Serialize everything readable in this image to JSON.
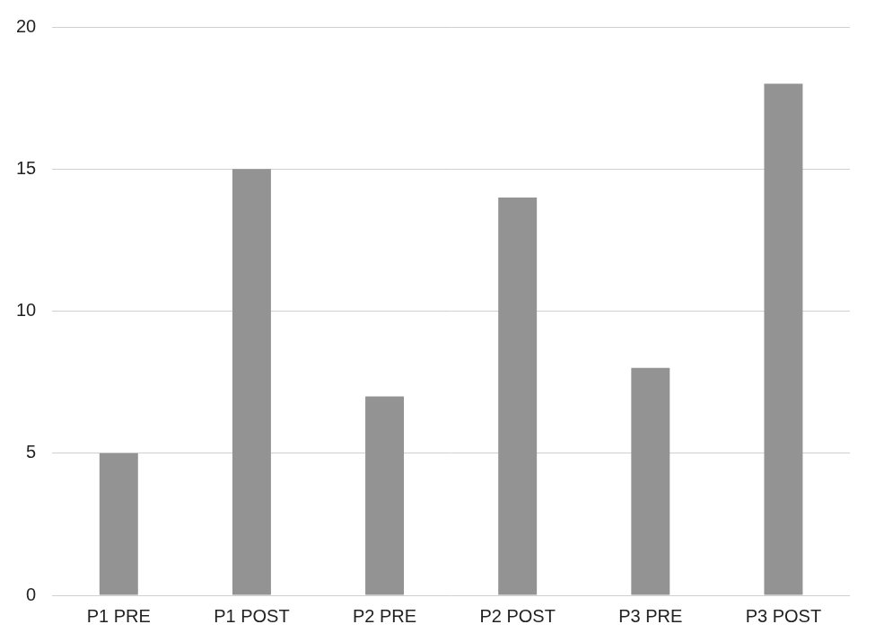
{
  "chart_data": {
    "type": "bar",
    "categories": [
      "P1 PRE",
      "P1 POST",
      "P2 PRE",
      "P2 POST",
      "P3 PRE",
      "P3 POST"
    ],
    "values": [
      5,
      15,
      7,
      14,
      8,
      18
    ],
    "color": "#939393",
    "ylim": [
      0,
      20
    ],
    "yticks": [
      0,
      5,
      10,
      15,
      20
    ],
    "grid": true
  }
}
